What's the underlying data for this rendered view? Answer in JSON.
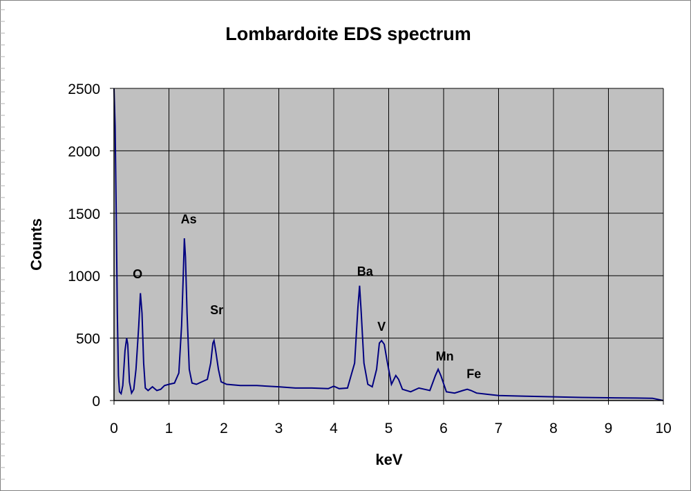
{
  "chart_data": {
    "type": "line",
    "title": "Lombardoite EDS spectrum",
    "xlabel": "keV",
    "ylabel": "Counts",
    "xlim": [
      0,
      10
    ],
    "ylim": [
      0,
      2500
    ],
    "x_ticks": [
      "0",
      "1",
      "2",
      "3",
      "4",
      "5",
      "6",
      "7",
      "8",
      "9",
      "10"
    ],
    "y_ticks": [
      "0",
      "500",
      "1000",
      "1500",
      "2000",
      "2500"
    ],
    "grid": true,
    "plot_background": "#c0c0c0",
    "line_color": "#000080",
    "series": [
      {
        "x": [
          0.0,
          0.02,
          0.04,
          0.06,
          0.08,
          0.1,
          0.13,
          0.16,
          0.2,
          0.23,
          0.25,
          0.28,
          0.32,
          0.36,
          0.4,
          0.45,
          0.48,
          0.51,
          0.54,
          0.57,
          0.62,
          0.7,
          0.78,
          0.85,
          0.92,
          1.0,
          1.1,
          1.18,
          1.23,
          1.26,
          1.28,
          1.3,
          1.33,
          1.37,
          1.42,
          1.5,
          1.6,
          1.7,
          1.76,
          1.8,
          1.82,
          1.85,
          1.9,
          1.95,
          2.05,
          2.3,
          2.6,
          3.0,
          3.3,
          3.6,
          3.9,
          4.0,
          4.1,
          4.25,
          4.38,
          4.44,
          4.47,
          4.5,
          4.55,
          4.62,
          4.7,
          4.78,
          4.83,
          4.87,
          4.92,
          4.97,
          5.05,
          5.13,
          5.18,
          5.25,
          5.4,
          5.55,
          5.65,
          5.75,
          5.85,
          5.9,
          5.95,
          6.05,
          6.2,
          6.35,
          6.43,
          6.5,
          6.6,
          6.8,
          7.0,
          7.5,
          8.0,
          8.5,
          9.0,
          9.5,
          9.8,
          10.0
        ],
        "y": [
          2500,
          2200,
          1500,
          700,
          200,
          70,
          55,
          120,
          400,
          500,
          450,
          150,
          60,
          90,
          250,
          600,
          860,
          700,
          300,
          100,
          80,
          110,
          80,
          90,
          120,
          130,
          140,
          220,
          600,
          1000,
          1300,
          1150,
          700,
          250,
          140,
          130,
          150,
          170,
          300,
          460,
          480,
          400,
          250,
          150,
          130,
          120,
          120,
          110,
          100,
          100,
          95,
          115,
          95,
          100,
          300,
          750,
          920,
          700,
          300,
          130,
          110,
          250,
          460,
          480,
          450,
          320,
          130,
          200,
          170,
          90,
          70,
          100,
          90,
          80,
          200,
          250,
          200,
          70,
          60,
          80,
          90,
          80,
          60,
          50,
          40,
          35,
          30,
          25,
          22,
          20,
          18,
          0
        ]
      }
    ],
    "annotations": [
      {
        "text": "O",
        "x": 0.43,
        "y": 980
      },
      {
        "text": "As",
        "x": 1.36,
        "y": 1420
      },
      {
        "text": "Sr",
        "x": 1.87,
        "y": 690
      },
      {
        "text": "Ba",
        "x": 4.57,
        "y": 1000
      },
      {
        "text": "V",
        "x": 4.87,
        "y": 560
      },
      {
        "text": "Mn",
        "x": 6.02,
        "y": 320
      },
      {
        "text": "Fe",
        "x": 6.55,
        "y": 180
      }
    ]
  }
}
